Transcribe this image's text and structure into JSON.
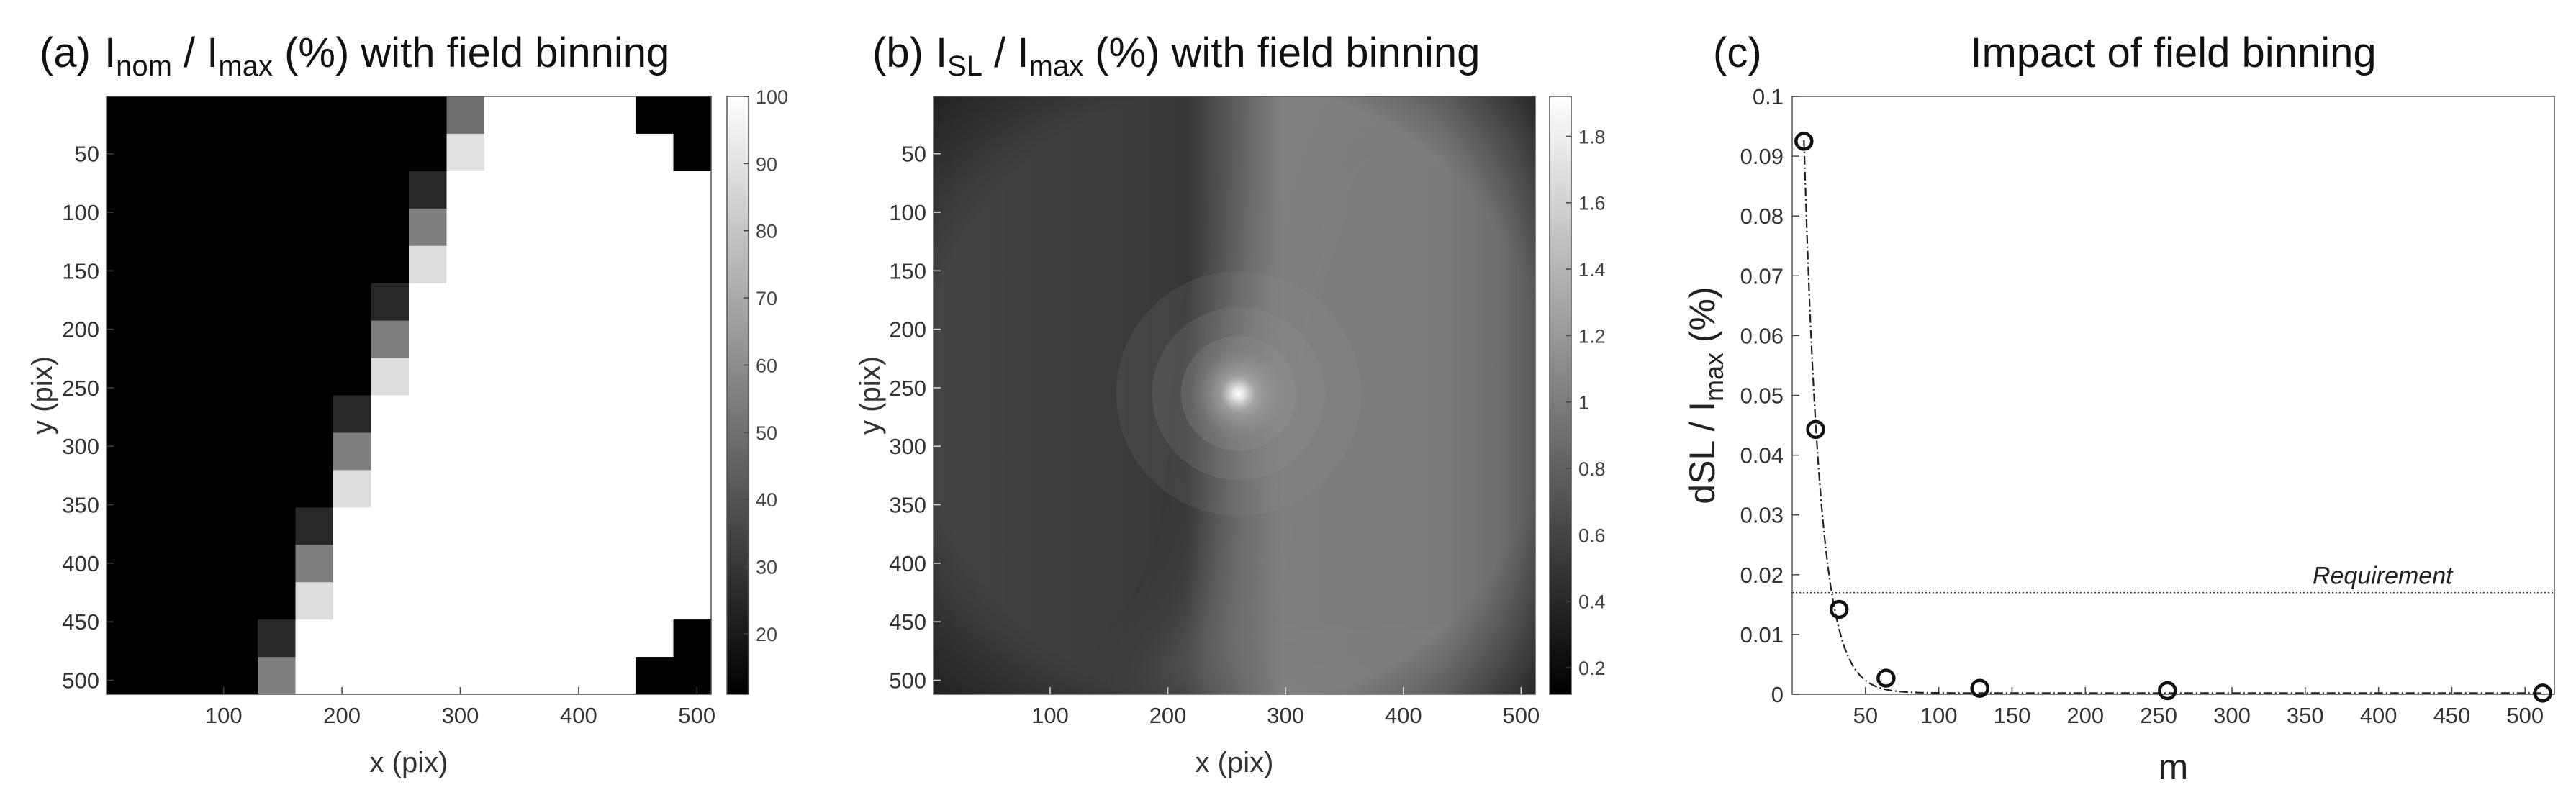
{
  "chart_data": [
    {
      "panel": "(a)",
      "type": "heatmap",
      "title": {
        "pre": "I",
        "sub1": "nom",
        "mid": " / I",
        "sub2": "max",
        "post": " (%) with field binning"
      },
      "xlabel": "x (pix)",
      "ylabel": "y (pix)",
      "xlim": [
        1,
        512
      ],
      "ylim": [
        512,
        1
      ],
      "xticks": [
        100,
        200,
        300,
        400,
        500
      ],
      "yticks": [
        50,
        100,
        150,
        200,
        250,
        300,
        350,
        400,
        450,
        500
      ],
      "colorbar": {
        "min": 11,
        "max": 100,
        "ticks": [
          20,
          30,
          40,
          50,
          60,
          70,
          80,
          90,
          100
        ]
      },
      "block_size": 32,
      "boundary_rows": [
        {
          "row": 0,
          "full": 9,
          "partial": 50
        },
        {
          "row": 1,
          "full": 9,
          "partial": 90
        },
        {
          "row": 2,
          "full": 8,
          "partial": 25
        },
        {
          "row": 3,
          "full": 8,
          "partial": 55
        },
        {
          "row": 4,
          "full": 8,
          "partial": 88
        },
        {
          "row": 5,
          "full": 7,
          "partial": 25
        },
        {
          "row": 6,
          "full": 7,
          "partial": 55
        },
        {
          "row": 7,
          "full": 7,
          "partial": 88
        },
        {
          "row": 8,
          "full": 6,
          "partial": 25
        },
        {
          "row": 9,
          "full": 6,
          "partial": 55
        },
        {
          "row": 10,
          "full": 6,
          "partial": 88
        },
        {
          "row": 11,
          "full": 5,
          "partial": 25
        },
        {
          "row": 12,
          "full": 5,
          "partial": 55
        },
        {
          "row": 13,
          "full": 5,
          "partial": 88
        },
        {
          "row": 14,
          "full": 4,
          "partial": 25
        },
        {
          "row": 15,
          "full": 4,
          "partial": 55
        }
      ],
      "dark_corner_cells": [
        [
          0,
          14
        ],
        [
          0,
          15
        ],
        [
          1,
          15
        ],
        [
          14,
          15
        ],
        [
          15,
          14
        ],
        [
          15,
          15
        ]
      ]
    },
    {
      "panel": "(b)",
      "type": "heatmap",
      "title": {
        "pre": "I",
        "sub1": "SL",
        "mid": " / I",
        "sub2": "max",
        "post": " (%) with field binning"
      },
      "xlabel": "x (pix)",
      "ylabel": "y (pix)",
      "xlim": [
        1,
        512
      ],
      "ylim": [
        512,
        1
      ],
      "xticks": [
        100,
        200,
        300,
        400,
        500
      ],
      "yticks": [
        50,
        100,
        150,
        200,
        250,
        300,
        350,
        400,
        450,
        500
      ],
      "colorbar": {
        "min": 0.12,
        "max": 1.92,
        "ticks": [
          0.2,
          0.4,
          0.6,
          0.8,
          1,
          1.2,
          1.4,
          1.6,
          1.8
        ]
      },
      "hotspot": {
        "x": 260,
        "y": 255
      }
    },
    {
      "panel": "(c)",
      "type": "scatter",
      "title": "Impact of field binning",
      "xlabel": "m",
      "ylabel": {
        "pre": "dSL / I",
        "sub": "max",
        "post": " (%)"
      },
      "xlim": [
        0,
        520
      ],
      "ylim": [
        0,
        0.1
      ],
      "xticks": [
        50,
        100,
        150,
        200,
        250,
        300,
        350,
        400,
        450,
        500
      ],
      "yticks": [
        0,
        0.01,
        0.02,
        0.03,
        0.04,
        0.05,
        0.06,
        0.07,
        0.08,
        0.09,
        0.1
      ],
      "x": [
        8,
        16,
        32,
        64,
        128,
        256,
        512
      ],
      "y": [
        0.0925,
        0.0443,
        0.0142,
        0.0027,
        0.001,
        0.0006,
        0.0002
      ],
      "requirement": {
        "label": "Requirement",
        "value": 0.017
      }
    }
  ]
}
